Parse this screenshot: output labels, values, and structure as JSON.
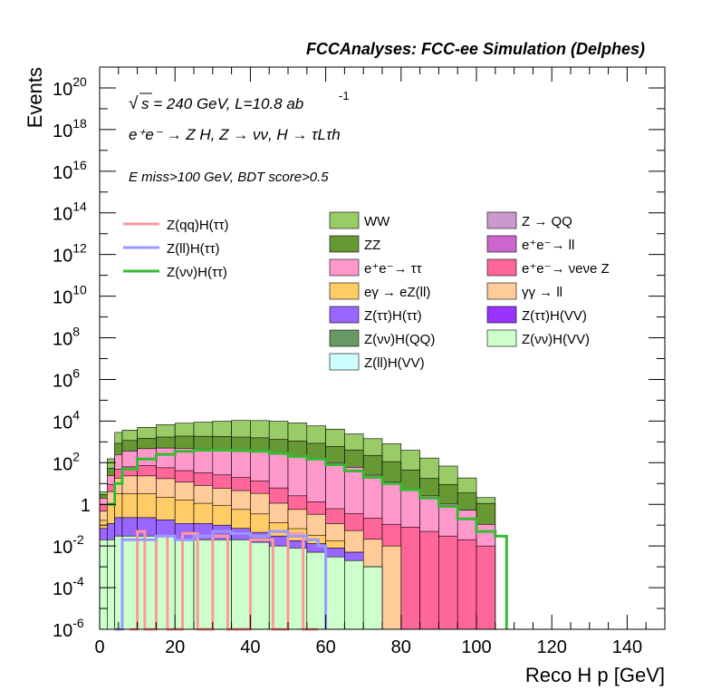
{
  "chart_data": {
    "type": "area",
    "title": "FCCAnalyses: FCC-ee Simulation (Delphes)",
    "xlabel": "Reco H p [GeV]",
    "ylabel": "Events",
    "xlim": [
      0,
      150
    ],
    "ylim": [
      1e-06,
      1e+21
    ],
    "log_y": true,
    "grid": false,
    "legend_position": "top",
    "annotations": {
      "sqrt_s": "s = 240 GeV, L=10.8 ab",
      "lumi_exp": "-1",
      "process": "e⁺e⁻ → Z H, Z → νν, H → τLτh",
      "selection": "E miss>100 GeV, BDT score>0.5"
    },
    "x_ticks": [
      "0",
      "20",
      "40",
      "60",
      "80",
      "100",
      "120",
      "140"
    ],
    "y_ticks": [
      {
        "base": "10",
        "exp": "20"
      },
      {
        "base": "10",
        "exp": "18"
      },
      {
        "base": "10",
        "exp": "16"
      },
      {
        "base": "10",
        "exp": "14"
      },
      {
        "base": "10",
        "exp": "12"
      },
      {
        "base": "10",
        "exp": "10"
      },
      {
        "base": "10",
        "exp": "8"
      },
      {
        "base": "10",
        "exp": "6"
      },
      {
        "base": "10",
        "exp": "4"
      },
      {
        "base": "10",
        "exp": "2"
      },
      {
        "base": "1",
        "exp": ""
      },
      {
        "base": "10",
        "exp": "-2"
      },
      {
        "base": "10",
        "exp": "-4"
      },
      {
        "base": "10",
        "exp": "-6"
      }
    ],
    "stack_x_edges": [
      0,
      2,
      4,
      6,
      10,
      15,
      20,
      25,
      30,
      35,
      40,
      45,
      50,
      55,
      60,
      65,
      70,
      75,
      80,
      85,
      90,
      95,
      100,
      105,
      110
    ],
    "stacked_series": [
      {
        "name": "WW",
        "color": "#99cc66",
        "values": [
          1,
          100,
          2000,
          2500,
          3500,
          5000,
          6000,
          7000,
          8000,
          9000,
          9000,
          8500,
          7000,
          5000,
          3500,
          2000,
          1200,
          700,
          350,
          150,
          60,
          15,
          1,
          0
        ]
      },
      {
        "name": "ZZ",
        "color": "#669933",
        "values": [
          1,
          30,
          600,
          800,
          1000,
          1200,
          1400,
          1400,
          1400,
          1300,
          1200,
          1000,
          900,
          700,
          500,
          350,
          200,
          100,
          40,
          15,
          8,
          3,
          1,
          0
        ]
      },
      {
        "name": "e⁺e⁻→ ττ",
        "color": "#ff99cc",
        "values": [
          1,
          15,
          200,
          300,
          400,
          450,
          450,
          420,
          400,
          380,
          350,
          300,
          200,
          150,
          100,
          60,
          25,
          12,
          5,
          2.5,
          1,
          0.5,
          0.1,
          0
        ]
      },
      {
        "name": "e⁺e⁻→ νeνe Z",
        "color": "#ff6699",
        "values": [
          0.5,
          5,
          30,
          40,
          50,
          40,
          30,
          25,
          20,
          15,
          10,
          5,
          2,
          1,
          0.5,
          0.3,
          0.2,
          0.1,
          0.08,
          0.05,
          0.03,
          0.02,
          0.01,
          0
        ]
      },
      {
        "name": "γγ → ll",
        "color": "#ffcc99",
        "values": [
          0.3,
          3,
          15,
          20,
          20,
          15,
          10,
          7,
          5,
          4,
          3,
          1,
          0.5,
          0.3,
          0.1,
          0.05,
          0.02,
          0.01,
          0,
          0,
          0,
          0,
          0,
          0
        ]
      },
      {
        "name": "eγ → eZ(ll)",
        "color": "#ffcc66",
        "values": [
          0.1,
          1,
          3,
          3,
          3,
          2,
          1.5,
          1,
          0.8,
          0.5,
          0.3,
          0.1,
          0.05,
          0.02,
          0.01,
          0,
          0,
          0,
          0,
          0,
          0,
          0,
          0,
          0
        ]
      },
      {
        "name": "Z(ττ)H(ττ)",
        "color": "#9966ff",
        "values": [
          0.05,
          0.1,
          0.2,
          0.2,
          0.2,
          0.15,
          0.1,
          0.1,
          0.08,
          0.05,
          0.03,
          0.02,
          0.01,
          0.008,
          0.005,
          0.003,
          0,
          0,
          0,
          0,
          0,
          0,
          0,
          0
        ]
      },
      {
        "name": "Z(νν)H(VV)",
        "color": "#ccffcc",
        "values": [
          0.02,
          0.02,
          0.03,
          0.03,
          0.03,
          0.03,
          0.02,
          0.02,
          0.02,
          0.02,
          0.015,
          0.01,
          0.008,
          0.005,
          0.003,
          0.002,
          0.001,
          0,
          0,
          0,
          0,
          0,
          0,
          0
        ]
      }
    ],
    "overlay_series": [
      {
        "name": "Z(qq)H(ττ)",
        "color": "#ff9999",
        "x": [
          8,
          10,
          12,
          15,
          18,
          22,
          26,
          30,
          34,
          40,
          46,
          50,
          54,
          58
        ],
        "values": [
          1e-06,
          0.05,
          1e-06,
          0.03,
          1e-06,
          0.04,
          1e-06,
          0.03,
          1e-06,
          0.02,
          1e-06,
          0.04,
          1e-06,
          1e-06
        ]
      },
      {
        "name": "Z(ll)H(ττ)",
        "color": "#9999ff",
        "x": [
          4,
          6,
          10,
          15,
          20,
          25,
          30,
          35,
          40,
          45,
          50,
          55,
          58,
          60
        ],
        "values": [
          1e-06,
          0.02,
          0.02,
          0.03,
          0.02,
          0.03,
          0.05,
          0.04,
          0.03,
          0.05,
          0.03,
          0.02,
          0.01,
          1e-06
        ]
      },
      {
        "name": "Z(νν)H(ττ)",
        "color": "#33bb33",
        "x": [
          2,
          4,
          6,
          10,
          15,
          20,
          25,
          30,
          35,
          40,
          45,
          50,
          55,
          60,
          65,
          70,
          75,
          80,
          85,
          90,
          95,
          100,
          105,
          108
        ],
        "values": [
          1,
          10,
          50,
          150,
          250,
          350,
          400,
          400,
          380,
          350,
          280,
          200,
          150,
          80,
          40,
          20,
          10,
          5,
          2,
          0.8,
          0.2,
          0.05,
          0.03,
          1e-06
        ]
      }
    ],
    "legend_lines": [
      {
        "name": "Z(qq)H(ττ)",
        "color": "#ff9999"
      },
      {
        "name": "Z(ll)H(ττ)",
        "color": "#9999ff"
      },
      {
        "name": "Z(νν)H(ττ)",
        "color": "#33bb33"
      }
    ],
    "legend_fills": [
      {
        "name": "WW",
        "color": "#99cc66"
      },
      {
        "name": "Z → QQ",
        "color": "#cc99cc"
      },
      {
        "name": "ZZ",
        "color": "#669933"
      },
      {
        "name": "e⁺e⁻→ ll",
        "color": "#cc66cc"
      },
      {
        "name": "e⁺e⁻→ ττ",
        "color": "#ff99cc"
      },
      {
        "name": "e⁺e⁻→ νeνe Z",
        "color": "#ff6699"
      },
      {
        "name": "eγ → eZ(ll)",
        "color": "#ffcc66"
      },
      {
        "name": "γγ → ll",
        "color": "#ffcc99"
      },
      {
        "name": "Z(ττ)H(ττ)",
        "color": "#9966ff"
      },
      {
        "name": "Z(ττ)H(VV)",
        "color": "#9933ff"
      },
      {
        "name": "Z(νν)H(QQ)",
        "color": "#669966"
      },
      {
        "name": "Z(νν)H(VV)",
        "color": "#ccffcc"
      },
      {
        "name": "Z(ll)H(VV)",
        "color": "#ccffff"
      }
    ]
  }
}
